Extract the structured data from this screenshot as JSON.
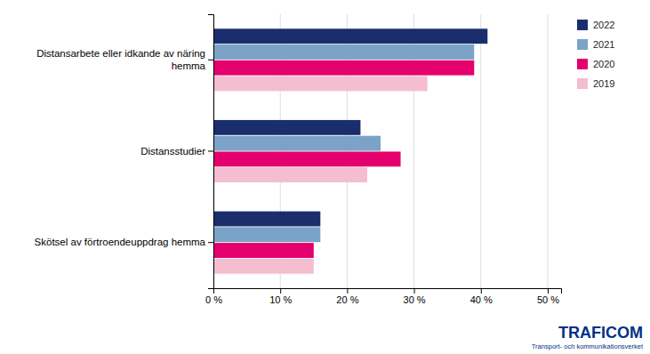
{
  "chart_data": {
    "type": "bar",
    "orientation": "horizontal",
    "categories": [
      "Skötsel av förtroendeuppdrag hemma",
      "Distansstudier",
      "Distansarbete eller idkande av näring\nhemma"
    ],
    "series": [
      {
        "name": "2022",
        "color": "#1a2e6e",
        "values": [
          16,
          22,
          41
        ]
      },
      {
        "name": "2021",
        "color": "#7ba3c8",
        "values": [
          16,
          25,
          39
        ]
      },
      {
        "name": "2020",
        "color": "#e4006d",
        "values": [
          15,
          28,
          39
        ]
      },
      {
        "name": "2019",
        "color": "#f4bdd0",
        "values": [
          15,
          23,
          32
        ]
      }
    ],
    "xlim": [
      0,
      52
    ],
    "xticks": [
      {
        "value": 0,
        "label": "0 %"
      },
      {
        "value": 10,
        "label": "10 %"
      },
      {
        "value": 20,
        "label": "20 %"
      },
      {
        "value": 30,
        "label": "30 %"
      },
      {
        "value": 40,
        "label": "40 %"
      },
      {
        "value": 50,
        "label": "50 %"
      }
    ],
    "grid": true,
    "legend": "right",
    "annotations": [
      {
        "text": "TRAFICOM",
        "color": "#003087"
      },
      {
        "text": "Transport- och kommunikationsverket",
        "color": "#003087"
      }
    ]
  }
}
